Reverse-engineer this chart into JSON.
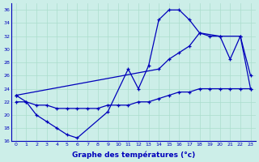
{
  "xlabel": "Graphe des températures (°c)",
  "background_color": "#cceee8",
  "grid_color": "#aaddcc",
  "line_color": "#0000bb",
  "ylim": [
    16,
    37
  ],
  "yticks": [
    16,
    18,
    20,
    22,
    24,
    26,
    28,
    30,
    32,
    34,
    36
  ],
  "xticks": [
    0,
    1,
    2,
    3,
    4,
    5,
    6,
    7,
    8,
    9,
    10,
    11,
    12,
    13,
    14,
    15,
    16,
    17,
    18,
    19,
    20,
    21,
    22,
    23
  ],
  "curve1_x": [
    0,
    1,
    2,
    3,
    4,
    5,
    6,
    9,
    11,
    12,
    13,
    14,
    15,
    16,
    17,
    18,
    20,
    22,
    23
  ],
  "curve1_y": [
    23,
    22,
    20,
    19,
    18,
    17,
    16.5,
    20.5,
    27,
    24,
    27.5,
    34.5,
    36,
    36,
    34.5,
    32.5,
    32,
    32,
    26
  ],
  "curve2_x": [
    0,
    1,
    2,
    3,
    4,
    5,
    6,
    7,
    8,
    9,
    10,
    11,
    12,
    13,
    14,
    15,
    16,
    17,
    18,
    19,
    20,
    21,
    22,
    23
  ],
  "curve2_y": [
    22,
    22,
    21.5,
    21.5,
    21,
    21,
    21,
    21,
    21,
    21.5,
    21.5,
    21.5,
    22,
    22,
    22.5,
    23,
    23.5,
    23.5,
    24,
    24,
    24,
    24,
    24,
    24
  ],
  "curve3_x": [
    0,
    14,
    15,
    16,
    17,
    18,
    19,
    20,
    21,
    22,
    23
  ],
  "curve3_y": [
    23,
    27,
    28.5,
    29.5,
    30.5,
    32.5,
    32,
    32,
    28.5,
    32,
    24
  ]
}
